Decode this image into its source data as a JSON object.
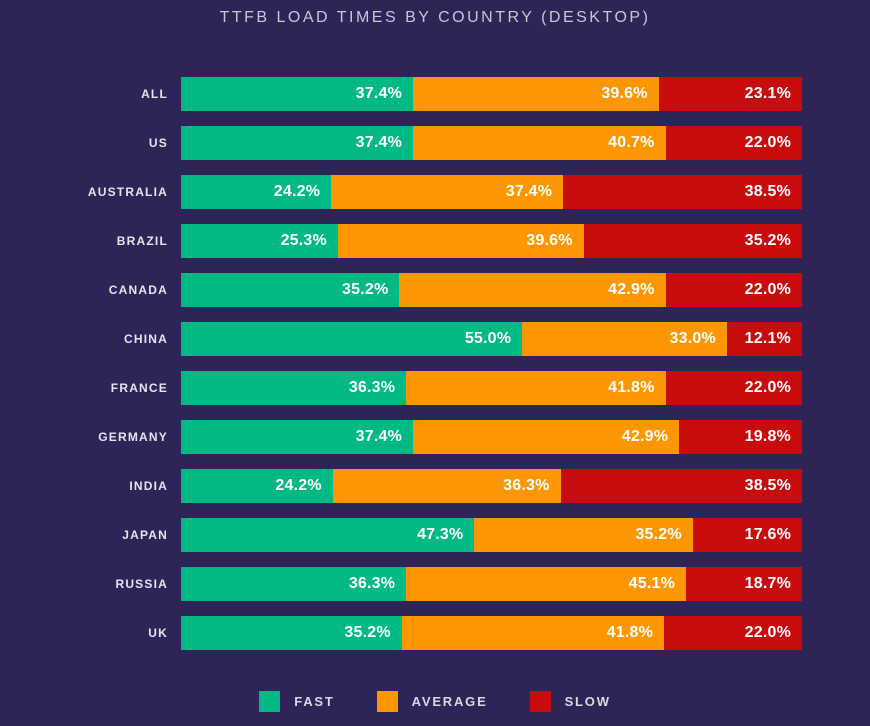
{
  "background_color": "#2e2457",
  "text_colors": {
    "title": "#c9c6d8",
    "category_labels": "#e6e4ee",
    "bar_values": "#ffffff",
    "legend_labels": "#dbd8e4"
  },
  "chart_data": {
    "type": "bar",
    "orientation": "horizontal",
    "stacked": true,
    "title": "TTFB LOAD TIMES BY COUNTRY (DESKTOP)",
    "categories": [
      "ALL",
      "US",
      "AUSTRALIA",
      "BRAZIL",
      "CANADA",
      "CHINA",
      "FRANCE",
      "GERMANY",
      "INDIA",
      "JAPAN",
      "RUSSIA",
      "UK"
    ],
    "series": [
      {
        "name": "FAST",
        "color": "#00b985",
        "values": [
          37.4,
          37.4,
          24.2,
          25.3,
          35.2,
          55.0,
          36.3,
          37.4,
          24.2,
          47.3,
          36.3,
          35.2
        ]
      },
      {
        "name": "AVERAGE",
        "color": "#fc9702",
        "values": [
          39.6,
          40.7,
          37.4,
          39.6,
          42.9,
          33.0,
          41.8,
          42.9,
          36.3,
          35.2,
          45.1,
          41.8
        ]
      },
      {
        "name": "SLOW",
        "color": "#c80c0d",
        "values": [
          23.1,
          22.0,
          38.5,
          35.2,
          22.0,
          12.1,
          22.0,
          19.8,
          38.5,
          17.6,
          18.7,
          22.0
        ]
      }
    ],
    "value_suffix": "%",
    "value_decimals": 1,
    "axis": "none",
    "grid": false,
    "legend_position": "bottom"
  }
}
